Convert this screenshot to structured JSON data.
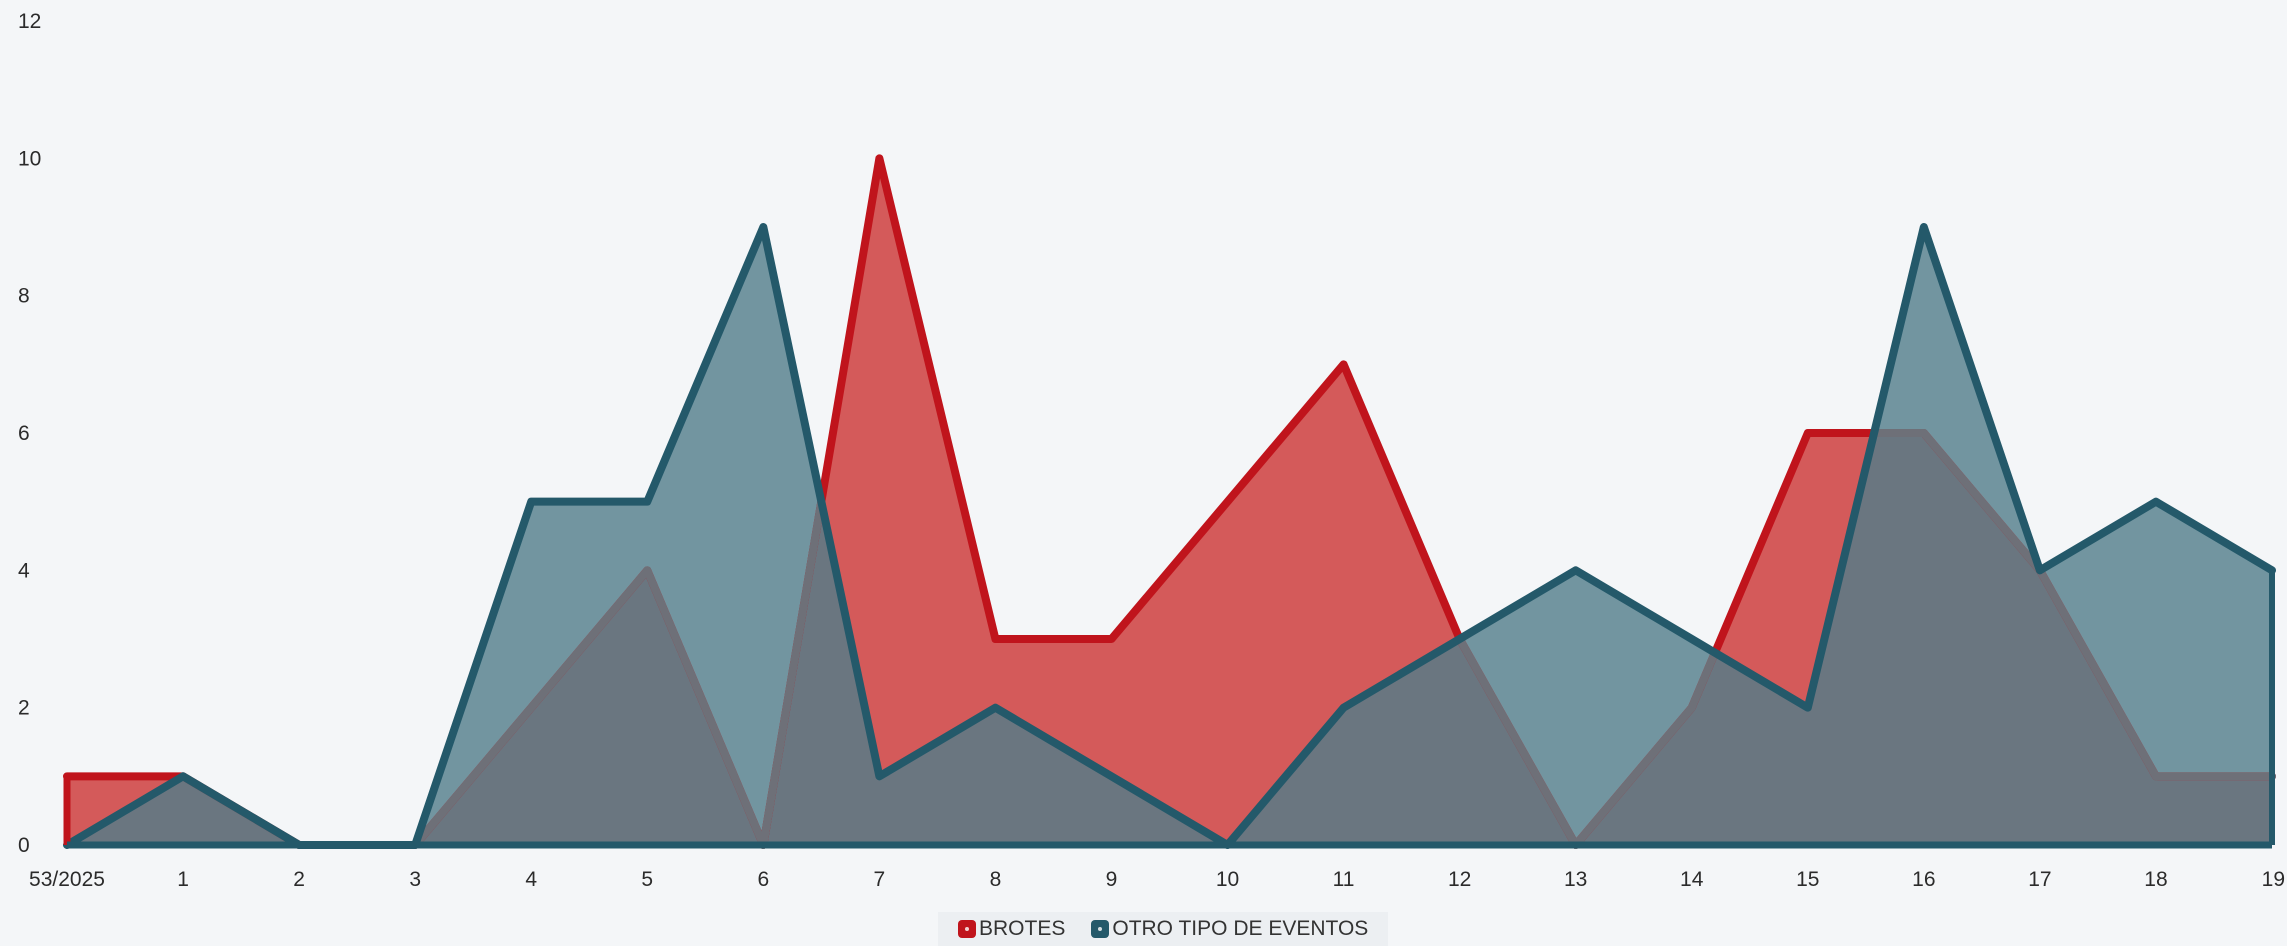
{
  "chart_data": {
    "type": "area",
    "categories": [
      "53/2025",
      "1",
      "2",
      "3",
      "4",
      "5",
      "6",
      "7",
      "8",
      "9",
      "10",
      "11",
      "12",
      "13",
      "14",
      "15",
      "16",
      "17",
      "18",
      "19"
    ],
    "series": [
      {
        "name": "BROTES",
        "color": "#c0141c",
        "fill": "#d45a5a",
        "values": [
          1,
          1,
          0,
          0,
          2,
          4,
          0,
          10,
          3,
          3,
          5,
          7,
          3,
          0,
          2,
          6,
          6,
          4,
          1,
          1
        ]
      },
      {
        "name": "OTRO TIPO DE EVENTOS",
        "color": "#24596a",
        "fill": "#7295a0",
        "values": [
          0,
          1,
          0,
          0,
          5,
          5,
          9,
          1,
          2,
          1,
          0,
          2,
          3,
          4,
          3,
          2,
          9,
          4,
          5,
          4
        ]
      }
    ],
    "overlap_color": "#6a7680",
    "overlap_stroke": "#6e7078",
    "ylim": [
      0,
      12
    ],
    "yticks": [
      0,
      2,
      4,
      6,
      8,
      10,
      12
    ],
    "grid": false,
    "legend_position": "bottom-center"
  }
}
